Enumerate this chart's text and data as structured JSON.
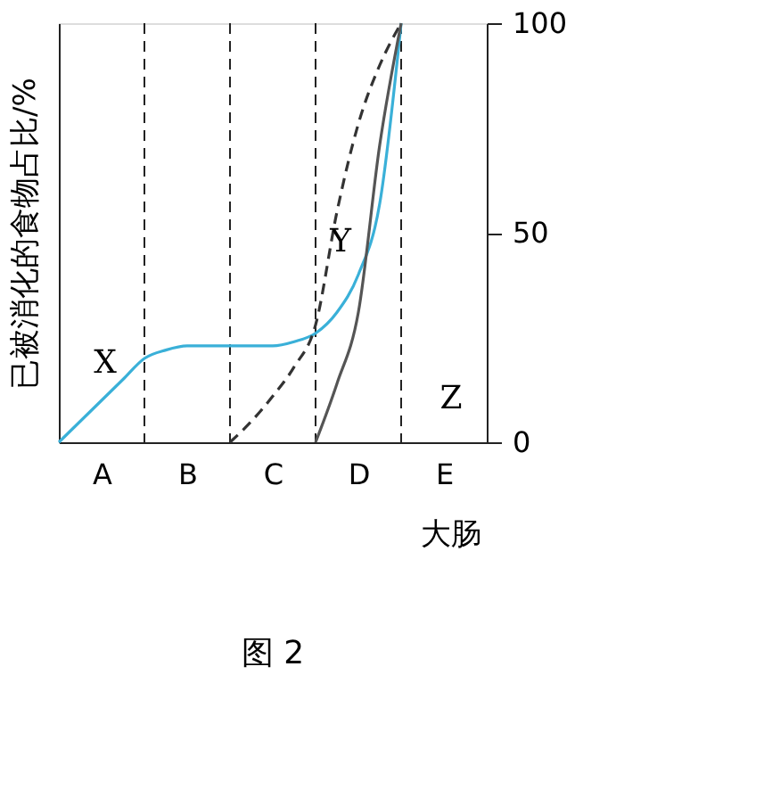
{
  "chart_data": {
    "type": "line",
    "title": "图 2",
    "ylabel": "已被消化的食物占比/%",
    "categories": [
      null,
      null,
      "A",
      null,
      null,
      null,
      "B",
      null,
      null,
      null,
      "C",
      null,
      null,
      null,
      "D",
      null,
      null,
      null,
      "E",
      null,
      null
    ],
    "ylim": [
      0,
      100
    ],
    "yticks": [
      0,
      50,
      100
    ],
    "grid": "x",
    "series": [
      {
        "color": "#3ab0d8",
        "line_style": "solid",
        "values": [
          0,
          5,
          10,
          15,
          20,
          22,
          23,
          23,
          23,
          23,
          23,
          24,
          26,
          31,
          40,
          57,
          100,
          null,
          null,
          null,
          null
        ]
      },
      {
        "color": "#333333",
        "line_style": "dashed",
        "values": [
          null,
          null,
          null,
          null,
          null,
          null,
          null,
          null,
          0,
          5,
          11,
          18,
          28,
          55,
          76,
          90,
          100,
          null,
          null,
          null,
          null
        ]
      },
      {
        "color": "#555555",
        "line_style": "solid",
        "values": [
          null,
          null,
          null,
          null,
          null,
          null,
          null,
          null,
          null,
          null,
          null,
          null,
          0,
          14,
          31,
          71,
          100,
          null,
          null,
          null,
          null
        ]
      }
    ],
    "annotations": [
      "X",
      "Y",
      "Z",
      "大肠"
    ]
  }
}
